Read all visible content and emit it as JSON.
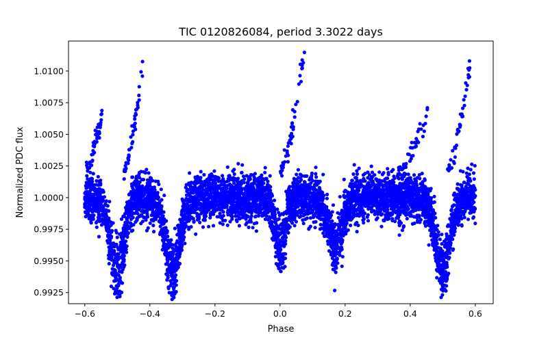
{
  "chart_data": {
    "type": "scatter",
    "title": "TIC 0120826084, period 3.3022 days",
    "xlabel": "Phase",
    "ylabel": "Normalized PDC flux",
    "xlim": [
      -0.65,
      0.655
    ],
    "ylim": [
      0.99162,
      1.01237
    ],
    "x_ticks": [
      -0.6,
      -0.4,
      -0.2,
      0.0,
      0.2,
      0.4,
      0.6
    ],
    "x_tick_labels": [
      "−0.6",
      "−0.4",
      "−0.2",
      "0.0",
      "0.2",
      "0.4",
      "0.6"
    ],
    "y_ticks": [
      0.9925,
      0.995,
      0.9975,
      1.0,
      1.0025,
      1.005,
      1.0075,
      1.01
    ],
    "y_tick_labels": [
      "0.9925",
      "0.9950",
      "0.9975",
      "1.0000",
      "1.0025",
      "1.0050",
      "1.0075",
      "1.0100"
    ],
    "marker_color": "#0000ff",
    "series": [
      {
        "name": "PDC flux",
        "baseline": 1.0,
        "phase_range": [
          -0.6,
          0.6
        ],
        "scatter_sd": 0.0009,
        "dips": [
          {
            "phase": -0.5,
            "depth": 0.0072,
            "width": 0.022
          },
          {
            "phase": -0.33,
            "depth": 0.0075,
            "width": 0.022
          },
          {
            "phase": 0.0,
            "depth": 0.0052,
            "width": 0.016
          },
          {
            "phase": 0.17,
            "depth": 0.0048,
            "width": 0.022
          },
          {
            "phase": 0.5,
            "depth": 0.0072,
            "width": 0.022
          }
        ],
        "flares": [
          {
            "start": -0.6,
            "peak": -0.545,
            "max": 1.0067
          },
          {
            "start": -0.48,
            "peak": -0.42,
            "max": 1.0106
          },
          {
            "start": 0.0,
            "peak": 0.075,
            "max": 1.0115
          },
          {
            "start": 0.36,
            "peak": 0.455,
            "max": 1.0067
          },
          {
            "start": 0.515,
            "peak": 0.585,
            "max": 1.0107
          }
        ]
      }
    ]
  }
}
